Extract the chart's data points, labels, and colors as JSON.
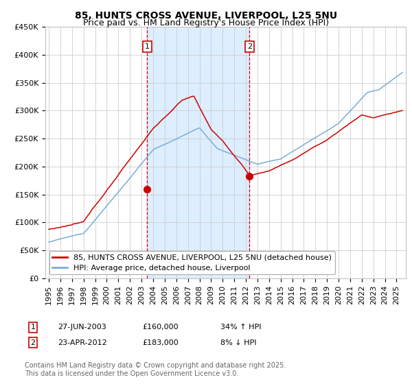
{
  "title": "85, HUNTS CROSS AVENUE, LIVERPOOL, L25 5NU",
  "subtitle": "Price paid vs. HM Land Registry's House Price Index (HPI)",
  "ylim": [
    0,
    450000
  ],
  "yticks": [
    0,
    50000,
    100000,
    150000,
    200000,
    250000,
    300000,
    350000,
    400000,
    450000
  ],
  "ytick_labels": [
    "£0",
    "£50K",
    "£100K",
    "£150K",
    "£200K",
    "£250K",
    "£300K",
    "£350K",
    "£400K",
    "£450K"
  ],
  "sale1": {
    "date_num": 2003.49,
    "price": 160000,
    "label": "1",
    "date_str": "27-JUN-2003",
    "pct": "34% ↑ HPI"
  },
  "sale2": {
    "date_num": 2012.31,
    "price": 183000,
    "label": "2",
    "date_str": "23-APR-2012",
    "pct": "8% ↓ HPI"
  },
  "legend_line1": "85, HUNTS CROSS AVENUE, LIVERPOOL, L25 5NU (detached house)",
  "legend_line2": "HPI: Average price, detached house, Liverpool",
  "footnote": "Contains HM Land Registry data © Crown copyright and database right 2025.\nThis data is licensed under the Open Government Licence v3.0.",
  "red_color": "#cc0000",
  "blue_color": "#7aadd4",
  "shade_color": "#ddeeff",
  "grid_color": "#cccccc",
  "background_color": "#ffffff",
  "title_fontsize": 10,
  "subtitle_fontsize": 9,
  "tick_fontsize": 8,
  "legend_fontsize": 8,
  "footnote_fontsize": 7
}
